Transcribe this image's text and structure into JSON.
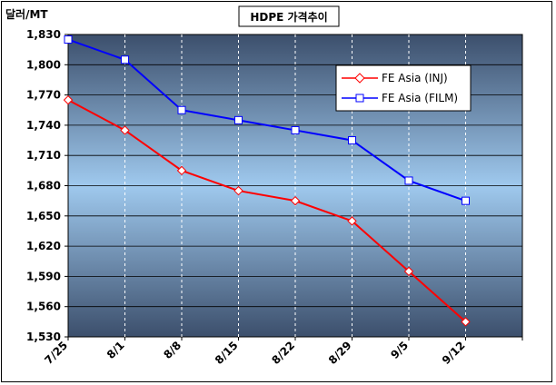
{
  "chart_data": {
    "type": "line",
    "title": "HDPE 가격추이",
    "ylabel": "달러/MT",
    "xlabel": "",
    "categories": [
      "7/25",
      "8/1",
      "8/8",
      "8/15",
      "8/22",
      "8/29",
      "9/5",
      "9/12"
    ],
    "ylim": [
      1530,
      1830
    ],
    "yticks": [
      1530,
      1560,
      1590,
      1620,
      1650,
      1680,
      1710,
      1740,
      1770,
      1800,
      1830
    ],
    "series": [
      {
        "name": "FE Asia (INJ)",
        "values": [
          1765,
          1735,
          1695,
          1675,
          1665,
          1645,
          1595,
          1545
        ],
        "color": "#ff0000",
        "marker": "diamond"
      },
      {
        "name": "FE Asia (FILM)",
        "values": [
          1825,
          1805,
          1755,
          1745,
          1735,
          1725,
          1685,
          1665
        ],
        "color": "#0000ff",
        "marker": "square"
      }
    ],
    "legend_position": "top-right",
    "grid": true
  }
}
